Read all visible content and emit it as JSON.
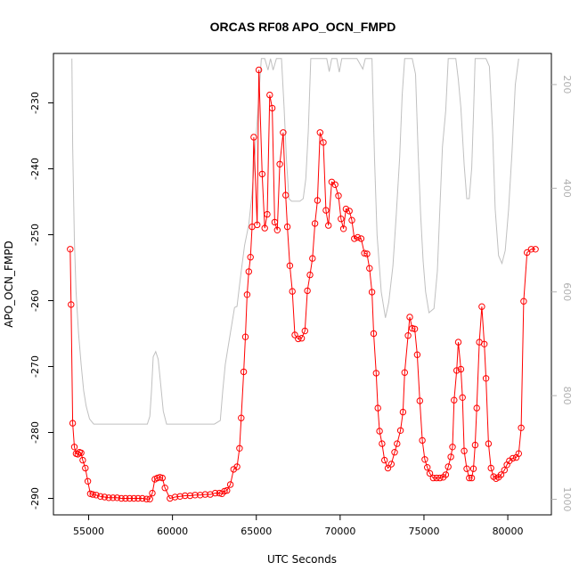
{
  "chart_data": {
    "type": "line",
    "title": "ORCAS RF08 APO_OCN_FMPD",
    "xlabel": "UTC Seconds",
    "ylabel": "APO_OCN_FMPD",
    "xlim": [
      52900,
      82600
    ],
    "ylim": [
      -292.5,
      -222.5
    ],
    "y2lim": [
      1030,
      140
    ],
    "y2_reversed": true,
    "grid": false,
    "x_ticks": [
      {
        "value": 55000,
        "label": "55000"
      },
      {
        "value": 60000,
        "label": "60000"
      },
      {
        "value": 65000,
        "label": "65000"
      },
      {
        "value": 70000,
        "label": "70000"
      },
      {
        "value": 75000,
        "label": "75000"
      },
      {
        "value": 80000,
        "label": "80000"
      }
    ],
    "y_ticks": [
      {
        "value": -230,
        "label": "-230"
      },
      {
        "value": -240,
        "label": "-240"
      },
      {
        "value": -250,
        "label": "-250"
      },
      {
        "value": -260,
        "label": "-260"
      },
      {
        "value": -270,
        "label": "-270"
      },
      {
        "value": -280,
        "label": "-280"
      },
      {
        "value": -290,
        "label": "-290"
      }
    ],
    "y2_ticks": [
      {
        "value": 200,
        "label": "200"
      },
      {
        "value": 400,
        "label": "400"
      },
      {
        "value": 600,
        "label": "600"
      },
      {
        "value": 800,
        "label": "800"
      },
      {
        "value": 1000,
        "label": "1000"
      }
    ],
    "series": [
      {
        "color": "#ff0000",
        "axis": "left",
        "style": "line-with-open-circles",
        "points": [
          [
            53900,
            -252.2
          ],
          [
            53950,
            -260.6
          ],
          [
            54050,
            -278.6
          ],
          [
            54150,
            -282.2
          ],
          [
            54250,
            -283.2
          ],
          [
            54350,
            -283.3
          ],
          [
            54450,
            -283.0
          ],
          [
            54550,
            -283.1
          ],
          [
            54650,
            -284.2
          ],
          [
            54800,
            -285.4
          ],
          [
            54950,
            -287.4
          ],
          [
            55100,
            -289.3
          ],
          [
            55250,
            -289.4
          ],
          [
            55450,
            -289.5
          ],
          [
            55700,
            -289.7
          ],
          [
            55950,
            -289.8
          ],
          [
            56200,
            -289.9
          ],
          [
            56450,
            -289.9
          ],
          [
            56700,
            -289.9
          ],
          [
            56950,
            -290.0
          ],
          [
            57200,
            -290.0
          ],
          [
            57450,
            -290.0
          ],
          [
            57700,
            -290.0
          ],
          [
            57950,
            -290.0
          ],
          [
            58200,
            -290.0
          ],
          [
            58450,
            -290.1
          ],
          [
            58650,
            -290.1
          ],
          [
            58800,
            -289.2
          ],
          [
            58950,
            -287.1
          ],
          [
            59100,
            -286.9
          ],
          [
            59250,
            -286.8
          ],
          [
            59400,
            -286.9
          ],
          [
            59550,
            -288.4
          ],
          [
            59850,
            -290.0
          ],
          [
            60150,
            -289.8
          ],
          [
            60450,
            -289.7
          ],
          [
            60750,
            -289.6
          ],
          [
            61050,
            -289.6
          ],
          [
            61350,
            -289.5
          ],
          [
            61650,
            -289.5
          ],
          [
            61950,
            -289.4
          ],
          [
            62250,
            -289.4
          ],
          [
            62550,
            -289.2
          ],
          [
            62800,
            -289.2
          ],
          [
            62950,
            -289.3
          ],
          [
            63100,
            -288.9
          ],
          [
            63250,
            -288.8
          ],
          [
            63450,
            -287.9
          ],
          [
            63650,
            -285.6
          ],
          [
            63850,
            -285.2
          ],
          [
            64000,
            -282.4
          ],
          [
            64100,
            -277.8
          ],
          [
            64250,
            -270.8
          ],
          [
            64350,
            -265.5
          ],
          [
            64450,
            -259.1
          ],
          [
            64550,
            -255.6
          ],
          [
            64650,
            -253.4
          ],
          [
            64750,
            -248.8
          ],
          [
            64850,
            -235.2
          ],
          [
            65050,
            -248.5
          ],
          [
            65150,
            -225.0
          ],
          [
            65350,
            -240.8
          ],
          [
            65500,
            -249.0
          ],
          [
            65650,
            -246.9
          ],
          [
            65800,
            -228.8
          ],
          [
            65950,
            -230.8
          ],
          [
            66100,
            -248.1
          ],
          [
            66250,
            -249.3
          ],
          [
            66400,
            -239.3
          ],
          [
            66600,
            -234.5
          ],
          [
            66750,
            -244.0
          ],
          [
            66850,
            -248.8
          ],
          [
            67000,
            -254.7
          ],
          [
            67150,
            -258.6
          ],
          [
            67300,
            -265.2
          ],
          [
            67500,
            -265.8
          ],
          [
            67700,
            -265.7
          ],
          [
            67900,
            -264.6
          ],
          [
            68050,
            -258.5
          ],
          [
            68200,
            -256.1
          ],
          [
            68350,
            -253.6
          ],
          [
            68500,
            -248.3
          ],
          [
            68650,
            -244.8
          ],
          [
            68800,
            -234.5
          ],
          [
            69000,
            -236.0
          ],
          [
            69150,
            -246.3
          ],
          [
            69300,
            -248.6
          ],
          [
            69500,
            -242.0
          ],
          [
            69700,
            -242.4
          ],
          [
            69900,
            -244.1
          ],
          [
            70050,
            -247.6
          ],
          [
            70200,
            -249.1
          ],
          [
            70350,
            -246.1
          ],
          [
            70550,
            -246.4
          ],
          [
            70700,
            -247.8
          ],
          [
            70850,
            -250.6
          ],
          [
            71050,
            -250.4
          ],
          [
            71250,
            -250.6
          ],
          [
            71450,
            -252.8
          ],
          [
            71600,
            -252.9
          ],
          [
            71750,
            -255.1
          ],
          [
            71900,
            -258.7
          ],
          [
            72000,
            -265.0
          ],
          [
            72150,
            -271.0
          ],
          [
            72250,
            -276.3
          ],
          [
            72350,
            -279.8
          ],
          [
            72500,
            -281.7
          ],
          [
            72650,
            -284.2
          ],
          [
            72850,
            -285.4
          ],
          [
            73050,
            -284.8
          ],
          [
            73250,
            -283.0
          ],
          [
            73400,
            -281.7
          ],
          [
            73600,
            -279.7
          ],
          [
            73750,
            -276.9
          ],
          [
            73850,
            -270.9
          ],
          [
            74050,
            -265.3
          ],
          [
            74150,
            -262.5
          ],
          [
            74300,
            -264.2
          ],
          [
            74450,
            -264.3
          ],
          [
            74600,
            -268.2
          ],
          [
            74750,
            -275.2
          ],
          [
            74900,
            -281.2
          ],
          [
            75050,
            -284.1
          ],
          [
            75200,
            -285.3
          ],
          [
            75350,
            -286.2
          ],
          [
            75550,
            -286.9
          ],
          [
            75750,
            -286.9
          ],
          [
            75950,
            -286.9
          ],
          [
            76150,
            -286.8
          ],
          [
            76300,
            -286.4
          ],
          [
            76450,
            -285.2
          ],
          [
            76600,
            -283.7
          ],
          [
            76700,
            -282.2
          ],
          [
            76800,
            -275.1
          ],
          [
            76950,
            -270.6
          ],
          [
            77050,
            -266.3
          ],
          [
            77200,
            -270.4
          ],
          [
            77300,
            -274.7
          ],
          [
            77400,
            -282.8
          ],
          [
            77550,
            -285.5
          ],
          [
            77700,
            -286.9
          ],
          [
            77850,
            -286.9
          ],
          [
            77950,
            -285.5
          ],
          [
            78050,
            -281.9
          ],
          [
            78150,
            -276.3
          ],
          [
            78300,
            -266.3
          ],
          [
            78450,
            -260.9
          ],
          [
            78600,
            -266.6
          ],
          [
            78700,
            -271.8
          ],
          [
            78850,
            -281.7
          ],
          [
            79000,
            -285.4
          ],
          [
            79150,
            -286.7
          ],
          [
            79300,
            -287.0
          ],
          [
            79450,
            -286.8
          ],
          [
            79600,
            -286.4
          ],
          [
            79800,
            -285.7
          ],
          [
            79950,
            -284.9
          ],
          [
            80100,
            -284.3
          ],
          [
            80300,
            -283.9
          ],
          [
            80500,
            -283.8
          ],
          [
            80650,
            -283.2
          ],
          [
            80800,
            -279.3
          ],
          [
            80950,
            -260.1
          ],
          [
            81150,
            -252.7
          ],
          [
            81400,
            -252.2
          ],
          [
            81650,
            -252.2
          ]
        ]
      },
      {
        "color": "#c0c0c0",
        "axis": "right",
        "style": "line",
        "points": [
          [
            54000,
            150
          ],
          [
            54050,
            320
          ],
          [
            54150,
            500
          ],
          [
            54250,
            600
          ],
          [
            54400,
            680
          ],
          [
            54550,
            740
          ],
          [
            54700,
            790
          ],
          [
            54850,
            820
          ],
          [
            55050,
            845
          ],
          [
            55300,
            855
          ],
          [
            56000,
            855
          ],
          [
            57000,
            855
          ],
          [
            58000,
            855
          ],
          [
            58500,
            855
          ],
          [
            58650,
            840
          ],
          [
            58750,
            790
          ],
          [
            58850,
            725
          ],
          [
            59000,
            715
          ],
          [
            59150,
            730
          ],
          [
            59300,
            780
          ],
          [
            59450,
            830
          ],
          [
            59650,
            855
          ],
          [
            60500,
            855
          ],
          [
            61500,
            855
          ],
          [
            62500,
            855
          ],
          [
            62850,
            848
          ],
          [
            63000,
            790
          ],
          [
            63150,
            740
          ],
          [
            63300,
            710
          ],
          [
            63500,
            670
          ],
          [
            63700,
            630
          ],
          [
            63850,
            628
          ],
          [
            63950,
            600
          ],
          [
            64100,
            560
          ],
          [
            64300,
            510
          ],
          [
            64550,
            470
          ],
          [
            64750,
            410
          ],
          [
            64950,
            320
          ],
          [
            65150,
            220
          ],
          [
            65300,
            150
          ],
          [
            65500,
            150
          ],
          [
            65700,
            172
          ],
          [
            65850,
            150
          ],
          [
            66000,
            172
          ],
          [
            66200,
            150
          ],
          [
            66500,
            150
          ],
          [
            66650,
            240
          ],
          [
            66800,
            345
          ],
          [
            66950,
            420
          ],
          [
            67100,
            425
          ],
          [
            67300,
            425
          ],
          [
            67600,
            425
          ],
          [
            67800,
            420
          ],
          [
            67950,
            382
          ],
          [
            68100,
            290
          ],
          [
            68250,
            150
          ],
          [
            68700,
            150
          ],
          [
            68950,
            150
          ],
          [
            69200,
            150
          ],
          [
            69350,
            175
          ],
          [
            69500,
            150
          ],
          [
            69800,
            150
          ],
          [
            69950,
            176
          ],
          [
            70100,
            150
          ],
          [
            70500,
            150
          ],
          [
            71000,
            150
          ],
          [
            71350,
            170
          ],
          [
            71500,
            150
          ],
          [
            71900,
            150
          ],
          [
            72050,
            340
          ],
          [
            72200,
            490
          ],
          [
            72450,
            600
          ],
          [
            72700,
            650
          ],
          [
            72900,
            620
          ],
          [
            73150,
            550
          ],
          [
            73350,
            450
          ],
          [
            73550,
            340
          ],
          [
            73700,
            220
          ],
          [
            73850,
            150
          ],
          [
            74300,
            150
          ],
          [
            74500,
            180
          ],
          [
            74650,
            330
          ],
          [
            74800,
            450
          ],
          [
            74950,
            540
          ],
          [
            75100,
            600
          ],
          [
            75300,
            640
          ],
          [
            75600,
            632
          ],
          [
            75800,
            560
          ],
          [
            75950,
            440
          ],
          [
            76100,
            320
          ],
          [
            76300,
            250
          ],
          [
            76450,
            150
          ],
          [
            76900,
            150
          ],
          [
            77050,
            190
          ],
          [
            77200,
            245
          ],
          [
            77400,
            355
          ],
          [
            77550,
            420
          ],
          [
            77700,
            420
          ],
          [
            77850,
            360
          ],
          [
            77950,
            260
          ],
          [
            78050,
            150
          ],
          [
            78500,
            150
          ],
          [
            78700,
            150
          ],
          [
            78900,
            165
          ],
          [
            79100,
            295
          ],
          [
            79250,
            440
          ],
          [
            79450,
            530
          ],
          [
            79650,
            545
          ],
          [
            79850,
            520
          ],
          [
            80050,
            440
          ],
          [
            80250,
            330
          ],
          [
            80450,
            200
          ],
          [
            80650,
            150
          ]
        ]
      }
    ]
  }
}
